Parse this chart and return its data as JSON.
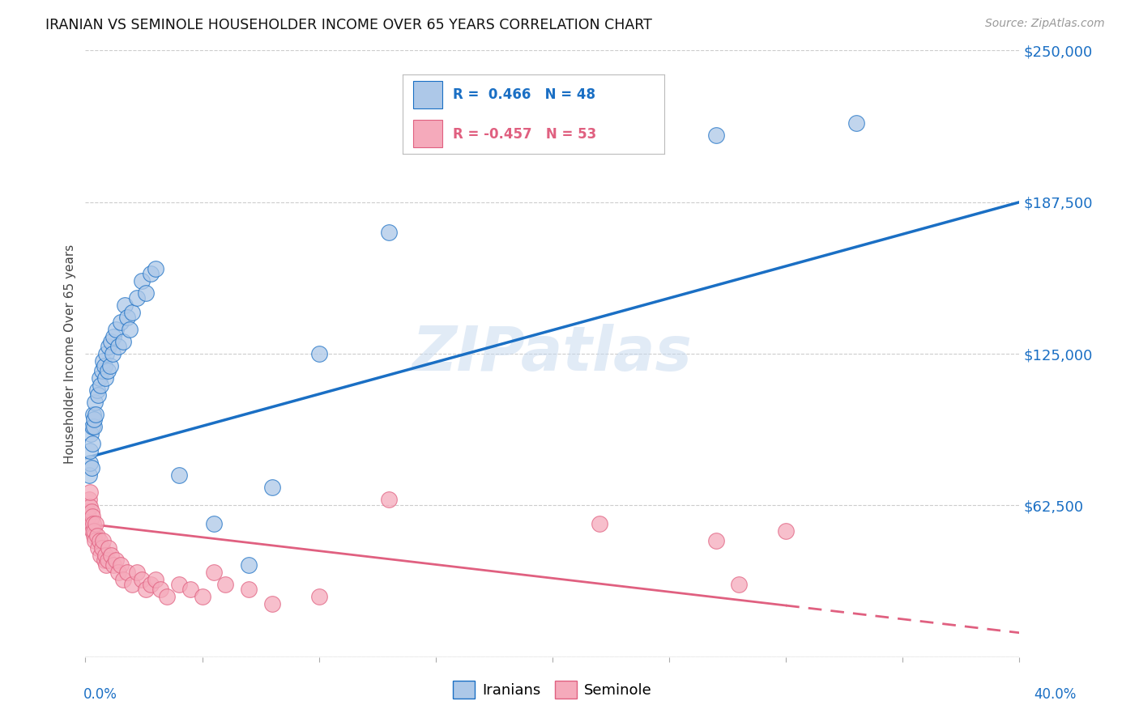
{
  "title": "IRANIAN VS SEMINOLE HOUSEHOLDER INCOME OVER 65 YEARS CORRELATION CHART",
  "source": "Source: ZipAtlas.com",
  "ylabel": "Householder Income Over 65 years",
  "xmin": 0.0,
  "xmax": 40.0,
  "ymin": 0,
  "ymax": 250000,
  "yticks": [
    0,
    62500,
    125000,
    187500,
    250000
  ],
  "ytick_labels": [
    "",
    "$62,500",
    "$125,000",
    "$187,500",
    "$250,000"
  ],
  "iranian_R": 0.466,
  "iranian_N": 48,
  "seminole_R": -0.457,
  "seminole_N": 53,
  "iranian_color": "#adc8e8",
  "seminole_color": "#f5aabb",
  "iranian_line_color": "#1a6fc4",
  "seminole_line_color": "#e06080",
  "background_color": "#ffffff",
  "watermark": "ZIPatlas",
  "iranian_x": [
    0.15,
    0.18,
    0.2,
    0.22,
    0.25,
    0.28,
    0.3,
    0.32,
    0.35,
    0.38,
    0.4,
    0.45,
    0.5,
    0.55,
    0.6,
    0.65,
    0.7,
    0.75,
    0.8,
    0.85,
    0.9,
    0.95,
    1.0,
    1.05,
    1.1,
    1.15,
    1.2,
    1.3,
    1.4,
    1.5,
    1.6,
    1.7,
    1.8,
    1.9,
    2.0,
    2.2,
    2.4,
    2.6,
    2.8,
    3.0,
    4.0,
    5.5,
    7.0,
    8.0,
    10.0,
    13.0,
    27.0,
    33.0
  ],
  "iranian_y": [
    75000,
    80000,
    85000,
    92000,
    78000,
    95000,
    88000,
    100000,
    95000,
    98000,
    105000,
    100000,
    110000,
    108000,
    115000,
    112000,
    118000,
    122000,
    120000,
    115000,
    125000,
    118000,
    128000,
    120000,
    130000,
    125000,
    132000,
    135000,
    128000,
    138000,
    130000,
    145000,
    140000,
    135000,
    142000,
    148000,
    155000,
    150000,
    158000,
    160000,
    75000,
    55000,
    38000,
    70000,
    125000,
    175000,
    215000,
    220000
  ],
  "seminole_x": [
    0.1,
    0.13,
    0.15,
    0.18,
    0.2,
    0.22,
    0.25,
    0.28,
    0.3,
    0.32,
    0.35,
    0.38,
    0.4,
    0.45,
    0.5,
    0.55,
    0.6,
    0.65,
    0.7,
    0.75,
    0.8,
    0.85,
    0.9,
    0.95,
    1.0,
    1.1,
    1.2,
    1.3,
    1.4,
    1.5,
    1.6,
    1.8,
    2.0,
    2.2,
    2.4,
    2.6,
    2.8,
    3.0,
    3.2,
    3.5,
    4.0,
    4.5,
    5.0,
    5.5,
    6.0,
    7.0,
    8.0,
    10.0,
    13.0,
    22.0,
    27.0,
    28.0,
    30.0
  ],
  "seminole_y": [
    60000,
    58000,
    65000,
    62000,
    68000,
    55000,
    60000,
    52000,
    58000,
    55000,
    50000,
    52000,
    48000,
    55000,
    50000,
    45000,
    48000,
    42000,
    45000,
    48000,
    40000,
    42000,
    38000,
    40000,
    45000,
    42000,
    38000,
    40000,
    35000,
    38000,
    32000,
    35000,
    30000,
    35000,
    32000,
    28000,
    30000,
    32000,
    28000,
    25000,
    30000,
    28000,
    25000,
    35000,
    30000,
    28000,
    22000,
    25000,
    65000,
    55000,
    48000,
    30000,
    52000
  ],
  "iran_line_y0": 82000,
  "iran_line_y1": 187500,
  "sem_line_y0": 55000,
  "sem_line_y1": 10000,
  "sem_solid_max_x": 30.0
}
